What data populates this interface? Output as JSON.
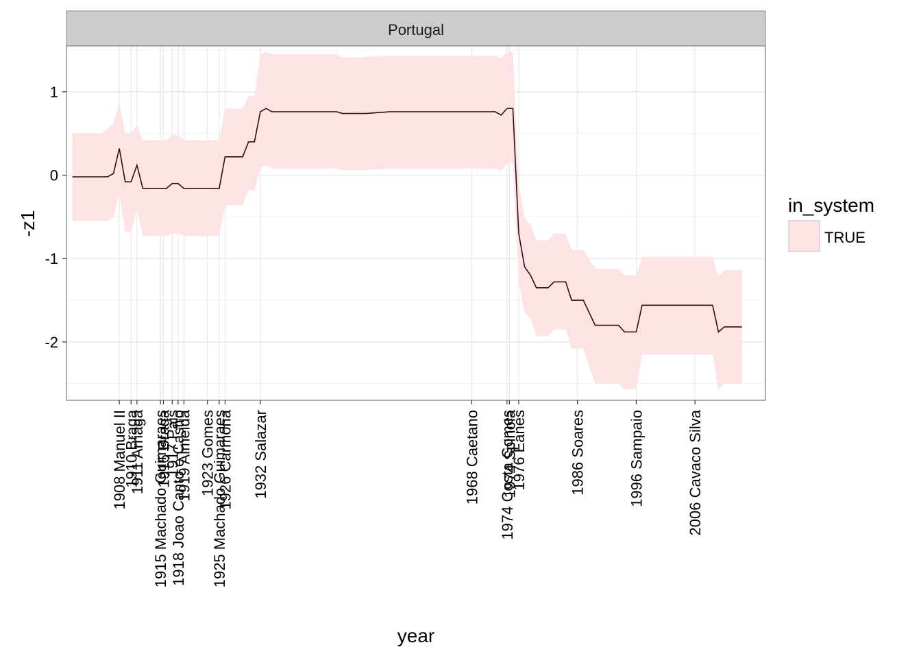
{
  "chart_data": {
    "type": "area",
    "facet": "Portugal",
    "xlabel": "year",
    "ylabel": "-z1",
    "xlim": [
      1899,
      2018
    ],
    "ylim": [
      -2.7,
      1.55
    ],
    "y_ticks": [
      1,
      0,
      -1,
      -2
    ],
    "y_tick_labels": [
      "1",
      "0",
      "-1",
      "-2"
    ],
    "grid": true,
    "x_ticks": [
      {
        "year": 1908,
        "label": "1908 Manuel II"
      },
      {
        "year": 1910,
        "label": "1910 Braga"
      },
      {
        "year": 1911,
        "label": "1911 Arriaga"
      },
      {
        "year": 1915,
        "label": "1915 Machado Guimaraes"
      },
      {
        "year": 1915.5,
        "label": "1915 Braga"
      },
      {
        "year": 1917,
        "label": "1917 Pais"
      },
      {
        "year": 1918,
        "label": "1918 Joao Canto e Castro"
      },
      {
        "year": 1919,
        "label": "1919 Almeida"
      },
      {
        "year": 1923,
        "label": "1923 Gomes"
      },
      {
        "year": 1925,
        "label": "1925 Machado Guimaraes"
      },
      {
        "year": 1926,
        "label": "1926 Carmona"
      },
      {
        "year": 1932,
        "label": "1932 Salazar"
      },
      {
        "year": 1968,
        "label": "1968 Caetano"
      },
      {
        "year": 1974,
        "label": "1974 Costa Gomes"
      },
      {
        "year": 1974.4,
        "label": "1974 Spinola"
      },
      {
        "year": 1976,
        "label": "1976 Eanes"
      },
      {
        "year": 1986,
        "label": "1986 Soares"
      },
      {
        "year": 1996,
        "label": "1996 Sampaio"
      },
      {
        "year": 2006,
        "label": "2006 Cavaco Silva"
      }
    ],
    "legend": {
      "title": "in_system",
      "entries": [
        "TRUE"
      ],
      "position": "right"
    },
    "series": [
      {
        "name": "TRUE",
        "fill_color": "#fde3e3",
        "line_color": "#2b0f13",
        "x": [
          1900,
          1904,
          1905,
          1906,
          1907,
          1908,
          1909,
          1910,
          1911,
          1912,
          1913,
          1915,
          1916,
          1917,
          1918,
          1919,
          1922,
          1923,
          1924,
          1925,
          1926,
          1927,
          1928,
          1929,
          1930,
          1931,
          1932,
          1933,
          1934,
          1936,
          1938,
          1945,
          1946,
          1949,
          1950,
          1954,
          1958,
          1962,
          1966,
          1968,
          1970,
          1971,
          1972,
          1973,
          1974,
          1975,
          1976,
          1977,
          1978,
          1979,
          1980,
          1981,
          1982,
          1984,
          1985,
          1986,
          1987,
          1989,
          1990,
          1993,
          1994,
          1995,
          1996,
          1997,
          2000,
          2004,
          2008,
          2009,
          2010,
          2011,
          2013,
          2014
        ],
        "y": [
          -0.02,
          -0.02,
          -0.02,
          -0.02,
          0.02,
          0.32,
          -0.08,
          -0.08,
          0.12,
          -0.16,
          -0.16,
          -0.16,
          -0.16,
          -0.1,
          -0.1,
          -0.16,
          -0.16,
          -0.16,
          -0.16,
          -0.16,
          0.22,
          0.22,
          0.22,
          0.22,
          0.4,
          0.4,
          0.76,
          0.8,
          0.76,
          0.76,
          0.76,
          0.76,
          0.74,
          0.74,
          0.74,
          0.76,
          0.76,
          0.76,
          0.76,
          0.76,
          0.76,
          0.76,
          0.76,
          0.72,
          0.8,
          0.8,
          -0.7,
          -1.1,
          -1.2,
          -1.35,
          -1.35,
          -1.35,
          -1.28,
          -1.28,
          -1.5,
          -1.5,
          -1.5,
          -1.8,
          -1.8,
          -1.8,
          -1.88,
          -1.88,
          -1.88,
          -1.56,
          -1.56,
          -1.56,
          -1.56,
          -1.56,
          -1.88,
          -1.82,
          -1.82,
          -1.82
        ],
        "upper": [
          0.5,
          0.5,
          0.5,
          0.55,
          0.62,
          0.87,
          0.5,
          0.5,
          0.6,
          0.42,
          0.42,
          0.42,
          0.42,
          0.48,
          0.48,
          0.42,
          0.42,
          0.42,
          0.42,
          0.42,
          0.8,
          0.8,
          0.8,
          0.8,
          0.95,
          0.95,
          1.45,
          1.48,
          1.45,
          1.45,
          1.45,
          1.45,
          1.41,
          1.41,
          1.42,
          1.43,
          1.43,
          1.43,
          1.43,
          1.43,
          1.43,
          1.43,
          1.43,
          1.4,
          1.48,
          1.48,
          -0.12,
          -0.52,
          -0.6,
          -0.78,
          -0.78,
          -0.78,
          -0.7,
          -0.7,
          -0.9,
          -0.9,
          -0.9,
          -1.12,
          -1.12,
          -1.12,
          -1.2,
          -1.2,
          -1.2,
          -0.98,
          -0.98,
          -0.98,
          -0.98,
          -0.98,
          -1.22,
          -1.14,
          -1.14,
          -1.14
        ],
        "lower": [
          -0.55,
          -0.55,
          -0.55,
          -0.55,
          -0.5,
          -0.22,
          -0.68,
          -0.68,
          -0.4,
          -0.73,
          -0.73,
          -0.73,
          -0.73,
          -0.7,
          -0.7,
          -0.73,
          -0.73,
          -0.73,
          -0.73,
          -0.73,
          -0.36,
          -0.36,
          -0.36,
          -0.36,
          -0.18,
          -0.18,
          0.08,
          0.12,
          0.08,
          0.08,
          0.08,
          0.08,
          0.06,
          0.06,
          0.06,
          0.08,
          0.08,
          0.08,
          0.08,
          0.08,
          0.08,
          0.08,
          0.08,
          0.05,
          0.14,
          0.14,
          -1.28,
          -1.65,
          -1.72,
          -1.93,
          -1.93,
          -1.93,
          -1.85,
          -1.85,
          -2.08,
          -2.08,
          -2.08,
          -2.5,
          -2.5,
          -2.5,
          -2.57,
          -2.57,
          -2.57,
          -2.15,
          -2.15,
          -2.15,
          -2.15,
          -2.15,
          -2.58,
          -2.5,
          -2.5,
          -2.5
        ]
      }
    ]
  }
}
